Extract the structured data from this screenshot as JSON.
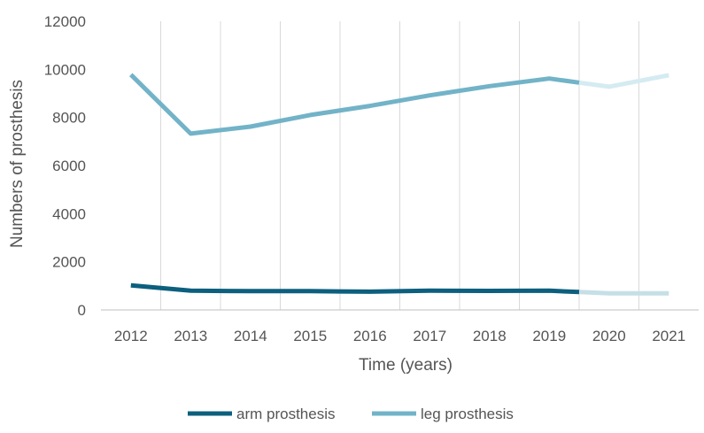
{
  "chart_data": {
    "type": "line",
    "title": "",
    "xlabel": "Time (years)",
    "ylabel": "Numbers of prosthesis",
    "categories": [
      "2012",
      "2013",
      "2014",
      "2015",
      "2016",
      "2017",
      "2018",
      "2019",
      "2020",
      "2021"
    ],
    "ylim": [
      0,
      12000
    ],
    "yticks": [
      "0",
      "2000",
      "4000",
      "6000",
      "8000",
      "10000",
      "12000"
    ],
    "grid": "vertical",
    "legend_position": "bottom",
    "projection_starts_after": "2019",
    "series": [
      {
        "name": "arm prosthesis",
        "color": "#0d5f7e",
        "projection_color": "#c6dfe7",
        "values": [
          1020,
          800,
          780,
          780,
          760,
          800,
          790,
          800,
          690,
          690
        ]
      },
      {
        "name": "leg prosthesis",
        "color": "#72b3c8",
        "projection_color": "#d5ebf2",
        "values": [
          9780,
          7330,
          7620,
          8100,
          8480,
          8920,
          9300,
          9620,
          9280,
          9760
        ]
      }
    ]
  }
}
